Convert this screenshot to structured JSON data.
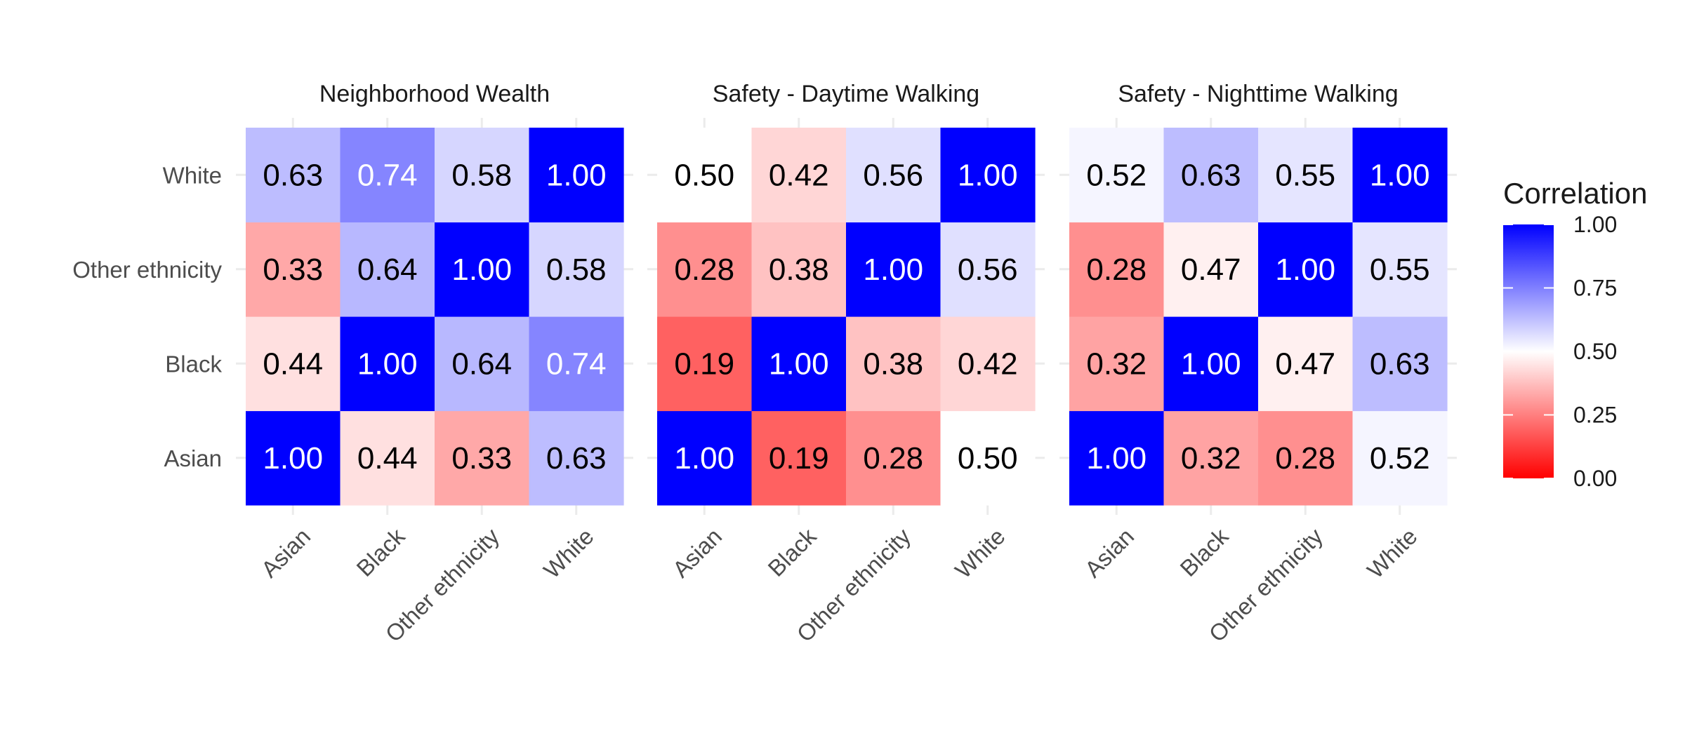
{
  "chart_data": {
    "type": "heatmap",
    "categories": [
      "Asian",
      "Black",
      "Other ethnicity",
      "White"
    ],
    "colors": {
      "low": "#ff0000",
      "mid": "#ffffff",
      "high": "#0000ff"
    },
    "legend": {
      "title": "Correlation",
      "placement": "right",
      "range": [
        0,
        1
      ],
      "midpoint": 0.5,
      "ticks": [
        "0.00",
        "0.25",
        "0.50",
        "0.75",
        "1.00"
      ]
    },
    "panels": [
      {
        "title": "Neighborhood Wealth",
        "matrix": [
          [
            1.0,
            0.44,
            0.33,
            0.63
          ],
          [
            0.44,
            1.0,
            0.64,
            0.74
          ],
          [
            0.33,
            0.64,
            1.0,
            0.58
          ],
          [
            0.63,
            0.74,
            0.58,
            1.0
          ]
        ]
      },
      {
        "title": "Safety - Daytime Walking",
        "matrix": [
          [
            1.0,
            0.19,
            0.28,
            0.5
          ],
          [
            0.19,
            1.0,
            0.38,
            0.42
          ],
          [
            0.28,
            0.38,
            1.0,
            0.56
          ],
          [
            0.5,
            0.42,
            0.56,
            1.0
          ]
        ]
      },
      {
        "title": "Safety - Nighttime Walking",
        "matrix": [
          [
            1.0,
            0.32,
            0.28,
            0.52
          ],
          [
            0.32,
            1.0,
            0.47,
            0.63
          ],
          [
            0.28,
            0.47,
            1.0,
            0.55
          ],
          [
            0.52,
            0.63,
            0.55,
            1.0
          ]
        ]
      }
    ]
  }
}
